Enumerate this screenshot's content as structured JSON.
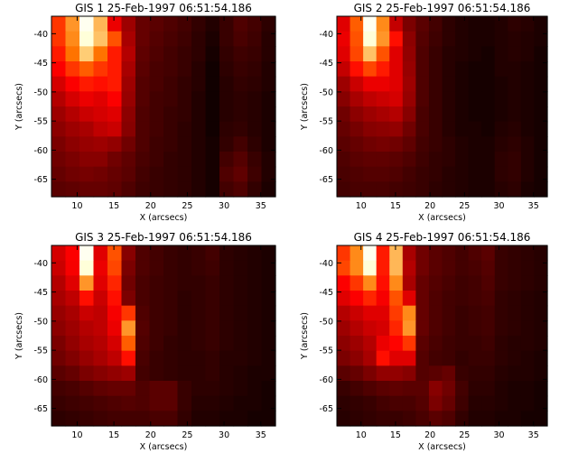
{
  "chart_data": [
    {
      "type": "heatmap",
      "title": "GIS 1 25-Feb-1997 06:51:54.186",
      "xlabel": "X (arcsecs)",
      "ylabel": "Y (arcsecs)",
      "xticks": [
        10,
        15,
        20,
        25,
        30,
        35
      ],
      "yticks": [
        -40,
        -45,
        -50,
        -55,
        -60,
        -65
      ],
      "ytick_labels": [
        "-40",
        "-45",
        "-50",
        "-55",
        "-60",
        "-65"
      ],
      "xlim": [
        6.5,
        37
      ],
      "ylim": [
        -68,
        -37
      ],
      "colormap": "red-temperature",
      "grid": false,
      "intensity_grid": [
        [
          0.55,
          0.72,
          0.98,
          0.78,
          0.42,
          0.28,
          0.18,
          0.16,
          0.14,
          0.12,
          0.09,
          0.06,
          0.1,
          0.14,
          0.12,
          0.08
        ],
        [
          0.55,
          0.7,
          0.95,
          0.8,
          0.6,
          0.3,
          0.18,
          0.15,
          0.13,
          0.11,
          0.08,
          0.05,
          0.1,
          0.13,
          0.11,
          0.07
        ],
        [
          0.5,
          0.66,
          0.82,
          0.66,
          0.5,
          0.32,
          0.17,
          0.14,
          0.12,
          0.1,
          0.08,
          0.04,
          0.09,
          0.11,
          0.1,
          0.07
        ],
        [
          0.45,
          0.55,
          0.62,
          0.55,
          0.5,
          0.3,
          0.16,
          0.13,
          0.12,
          0.1,
          0.07,
          0.03,
          0.08,
          0.1,
          0.09,
          0.06
        ],
        [
          0.38,
          0.45,
          0.5,
          0.48,
          0.5,
          0.28,
          0.15,
          0.13,
          0.11,
          0.09,
          0.07,
          0.03,
          0.07,
          0.09,
          0.08,
          0.06
        ],
        [
          0.32,
          0.38,
          0.42,
          0.4,
          0.45,
          0.27,
          0.15,
          0.12,
          0.11,
          0.09,
          0.06,
          0.03,
          0.07,
          0.08,
          0.07,
          0.05
        ],
        [
          0.28,
          0.32,
          0.36,
          0.38,
          0.4,
          0.25,
          0.14,
          0.12,
          0.1,
          0.09,
          0.06,
          0.03,
          0.07,
          0.08,
          0.07,
          0.05
        ],
        [
          0.25,
          0.28,
          0.3,
          0.34,
          0.36,
          0.24,
          0.14,
          0.12,
          0.1,
          0.08,
          0.06,
          0.03,
          0.08,
          0.09,
          0.07,
          0.05
        ],
        [
          0.22,
          0.25,
          0.27,
          0.28,
          0.26,
          0.2,
          0.14,
          0.11,
          0.1,
          0.08,
          0.06,
          0.04,
          0.09,
          0.12,
          0.08,
          0.05
        ],
        [
          0.2,
          0.22,
          0.24,
          0.24,
          0.2,
          0.17,
          0.13,
          0.11,
          0.09,
          0.08,
          0.06,
          0.04,
          0.12,
          0.15,
          0.1,
          0.06
        ],
        [
          0.18,
          0.2,
          0.21,
          0.2,
          0.18,
          0.16,
          0.12,
          0.1,
          0.09,
          0.08,
          0.06,
          0.04,
          0.14,
          0.17,
          0.11,
          0.06
        ],
        [
          0.16,
          0.17,
          0.18,
          0.18,
          0.17,
          0.14,
          0.11,
          0.1,
          0.09,
          0.08,
          0.06,
          0.04,
          0.12,
          0.14,
          0.09,
          0.05
        ]
      ]
    },
    {
      "type": "heatmap",
      "title": "GIS 2 25-Feb-1997 06:51:54.186",
      "xlabel": "X (arcsecs)",
      "ylabel": "Y (arcsecs)",
      "xticks": [
        10,
        15,
        20,
        25,
        30,
        35
      ],
      "yticks": [
        -40,
        -45,
        -50,
        -55,
        -60,
        -65
      ],
      "ytick_labels": [
        "-40",
        "-45",
        "-50",
        "-55",
        "-60",
        "-65"
      ],
      "xlim": [
        6.5,
        37
      ],
      "ylim": [
        -68,
        -37
      ],
      "colormap": "red-temperature",
      "grid": false,
      "intensity_grid": [
        [
          0.4,
          0.62,
          0.98,
          0.7,
          0.35,
          0.22,
          0.16,
          0.12,
          0.08,
          0.06,
          0.05,
          0.05,
          0.06,
          0.08,
          0.07,
          0.05
        ],
        [
          0.42,
          0.6,
          0.95,
          0.72,
          0.48,
          0.25,
          0.15,
          0.11,
          0.08,
          0.06,
          0.05,
          0.05,
          0.06,
          0.07,
          0.06,
          0.05
        ],
        [
          0.4,
          0.58,
          0.8,
          0.6,
          0.4,
          0.26,
          0.14,
          0.1,
          0.07,
          0.06,
          0.05,
          0.04,
          0.06,
          0.07,
          0.06,
          0.04
        ],
        [
          0.35,
          0.48,
          0.58,
          0.5,
          0.4,
          0.27,
          0.14,
          0.1,
          0.07,
          0.05,
          0.04,
          0.04,
          0.06,
          0.06,
          0.05,
          0.04
        ],
        [
          0.28,
          0.36,
          0.42,
          0.42,
          0.4,
          0.28,
          0.14,
          0.1,
          0.07,
          0.05,
          0.04,
          0.04,
          0.05,
          0.06,
          0.05,
          0.04
        ],
        [
          0.24,
          0.3,
          0.34,
          0.36,
          0.38,
          0.27,
          0.14,
          0.1,
          0.07,
          0.05,
          0.04,
          0.04,
          0.05,
          0.06,
          0.05,
          0.04
        ],
        [
          0.2,
          0.25,
          0.28,
          0.3,
          0.32,
          0.24,
          0.13,
          0.1,
          0.07,
          0.05,
          0.04,
          0.04,
          0.05,
          0.06,
          0.05,
          0.04
        ],
        [
          0.18,
          0.21,
          0.24,
          0.25,
          0.26,
          0.2,
          0.13,
          0.1,
          0.07,
          0.05,
          0.05,
          0.04,
          0.06,
          0.07,
          0.05,
          0.04
        ],
        [
          0.16,
          0.18,
          0.2,
          0.21,
          0.2,
          0.17,
          0.12,
          0.1,
          0.08,
          0.06,
          0.05,
          0.05,
          0.07,
          0.08,
          0.06,
          0.04
        ],
        [
          0.14,
          0.16,
          0.17,
          0.17,
          0.16,
          0.14,
          0.11,
          0.09,
          0.08,
          0.06,
          0.05,
          0.05,
          0.08,
          0.09,
          0.06,
          0.04
        ],
        [
          0.13,
          0.14,
          0.15,
          0.15,
          0.14,
          0.12,
          0.1,
          0.09,
          0.07,
          0.06,
          0.05,
          0.05,
          0.08,
          0.09,
          0.06,
          0.04
        ],
        [
          0.12,
          0.13,
          0.13,
          0.13,
          0.12,
          0.11,
          0.1,
          0.08,
          0.07,
          0.06,
          0.05,
          0.05,
          0.07,
          0.08,
          0.05,
          0.04
        ]
      ]
    },
    {
      "type": "heatmap",
      "title": "GIS 3 25-Feb-1997 06:51:54.186",
      "xlabel": "X (arcsecs)",
      "ylabel": "Y (arcsecs)",
      "xticks": [
        10,
        15,
        20,
        25,
        30,
        35
      ],
      "yticks": [
        -40,
        -45,
        -50,
        -55,
        -60,
        -65
      ],
      "ytick_labels": [
        "-40",
        "-45",
        "-50",
        "-55",
        "-60",
        "-65"
      ],
      "xlim": [
        6.5,
        37
      ],
      "ylim": [
        -68,
        -37
      ],
      "colormap": "red-temperature",
      "grid": false,
      "intensity_grid": [
        [
          0.38,
          0.45,
          0.98,
          0.4,
          0.6,
          0.24,
          0.14,
          0.12,
          0.1,
          0.09,
          0.1,
          0.12,
          0.08,
          0.07,
          0.06,
          0.05
        ],
        [
          0.36,
          0.44,
          0.95,
          0.42,
          0.58,
          0.22,
          0.14,
          0.12,
          0.1,
          0.09,
          0.1,
          0.11,
          0.08,
          0.07,
          0.06,
          0.05
        ],
        [
          0.32,
          0.4,
          0.72,
          0.4,
          0.52,
          0.2,
          0.13,
          0.11,
          0.1,
          0.09,
          0.09,
          0.1,
          0.08,
          0.07,
          0.06,
          0.05
        ],
        [
          0.3,
          0.34,
          0.48,
          0.36,
          0.48,
          0.22,
          0.13,
          0.11,
          0.1,
          0.08,
          0.09,
          0.1,
          0.08,
          0.07,
          0.06,
          0.05
        ],
        [
          0.27,
          0.3,
          0.36,
          0.34,
          0.44,
          0.55,
          0.14,
          0.11,
          0.1,
          0.08,
          0.09,
          0.1,
          0.08,
          0.07,
          0.06,
          0.05
        ],
        [
          0.25,
          0.28,
          0.32,
          0.34,
          0.42,
          0.72,
          0.15,
          0.11,
          0.1,
          0.08,
          0.09,
          0.1,
          0.08,
          0.07,
          0.06,
          0.05
        ],
        [
          0.22,
          0.26,
          0.3,
          0.32,
          0.38,
          0.62,
          0.14,
          0.11,
          0.09,
          0.08,
          0.09,
          0.1,
          0.08,
          0.07,
          0.06,
          0.05
        ],
        [
          0.2,
          0.23,
          0.27,
          0.3,
          0.34,
          0.48,
          0.13,
          0.1,
          0.09,
          0.08,
          0.08,
          0.09,
          0.07,
          0.07,
          0.06,
          0.05
        ],
        [
          0.16,
          0.18,
          0.22,
          0.24,
          0.26,
          0.28,
          0.12,
          0.1,
          0.09,
          0.08,
          0.08,
          0.09,
          0.07,
          0.06,
          0.05,
          0.05
        ],
        [
          0.12,
          0.13,
          0.15,
          0.17,
          0.18,
          0.18,
          0.14,
          0.16,
          0.16,
          0.1,
          0.08,
          0.08,
          0.07,
          0.06,
          0.05,
          0.04
        ],
        [
          0.1,
          0.11,
          0.12,
          0.13,
          0.14,
          0.15,
          0.14,
          0.16,
          0.16,
          0.1,
          0.07,
          0.07,
          0.06,
          0.05,
          0.05,
          0.04
        ],
        [
          0.08,
          0.09,
          0.1,
          0.11,
          0.12,
          0.12,
          0.12,
          0.13,
          0.13,
          0.09,
          0.06,
          0.06,
          0.05,
          0.05,
          0.04,
          0.04
        ]
      ]
    },
    {
      "type": "heatmap",
      "title": "GIS 4 25-Feb-1997 06:51:54.186",
      "xlabel": "X (arcsecs)",
      "ylabel": "Y (arcsecs)",
      "xticks": [
        10,
        15,
        20,
        25,
        30,
        35
      ],
      "yticks": [
        -40,
        -45,
        -50,
        -55,
        -60,
        -65
      ],
      "ytick_labels": [
        "-40",
        "-45",
        "-50",
        "-55",
        "-60",
        "-65"
      ],
      "xlim": [
        6.5,
        37
      ],
      "ylim": [
        -68,
        -37
      ],
      "colormap": "red-temperature",
      "grid": false,
      "intensity_grid": [
        [
          0.55,
          0.7,
          0.98,
          0.5,
          0.78,
          0.3,
          0.2,
          0.16,
          0.14,
          0.12,
          0.14,
          0.16,
          0.1,
          0.09,
          0.08,
          0.07
        ],
        [
          0.58,
          0.7,
          0.95,
          0.5,
          0.78,
          0.32,
          0.2,
          0.16,
          0.14,
          0.12,
          0.13,
          0.15,
          0.1,
          0.09,
          0.08,
          0.07
        ],
        [
          0.45,
          0.55,
          0.7,
          0.48,
          0.7,
          0.3,
          0.18,
          0.15,
          0.13,
          0.11,
          0.12,
          0.14,
          0.1,
          0.09,
          0.08,
          0.07
        ],
        [
          0.4,
          0.45,
          0.52,
          0.44,
          0.6,
          0.4,
          0.18,
          0.14,
          0.12,
          0.11,
          0.12,
          0.13,
          0.09,
          0.08,
          0.07,
          0.06
        ],
        [
          0.32,
          0.36,
          0.4,
          0.4,
          0.56,
          0.7,
          0.18,
          0.14,
          0.12,
          0.1,
          0.11,
          0.12,
          0.09,
          0.08,
          0.07,
          0.06
        ],
        [
          0.28,
          0.32,
          0.36,
          0.38,
          0.52,
          0.72,
          0.18,
          0.14,
          0.12,
          0.1,
          0.11,
          0.12,
          0.09,
          0.08,
          0.07,
          0.06
        ],
        [
          0.25,
          0.28,
          0.32,
          0.42,
          0.46,
          0.55,
          0.16,
          0.13,
          0.11,
          0.1,
          0.1,
          0.11,
          0.08,
          0.07,
          0.07,
          0.06
        ],
        [
          0.22,
          0.25,
          0.3,
          0.48,
          0.4,
          0.4,
          0.15,
          0.12,
          0.11,
          0.09,
          0.1,
          0.1,
          0.08,
          0.07,
          0.06,
          0.05
        ],
        [
          0.16,
          0.18,
          0.22,
          0.26,
          0.26,
          0.24,
          0.15,
          0.16,
          0.18,
          0.1,
          0.09,
          0.09,
          0.07,
          0.06,
          0.06,
          0.05
        ],
        [
          0.1,
          0.12,
          0.14,
          0.16,
          0.17,
          0.16,
          0.16,
          0.24,
          0.2,
          0.12,
          0.08,
          0.08,
          0.06,
          0.05,
          0.05,
          0.04
        ],
        [
          0.08,
          0.09,
          0.1,
          0.12,
          0.13,
          0.13,
          0.15,
          0.22,
          0.18,
          0.11,
          0.07,
          0.07,
          0.06,
          0.05,
          0.05,
          0.04
        ],
        [
          0.07,
          0.08,
          0.09,
          0.1,
          0.1,
          0.11,
          0.13,
          0.16,
          0.14,
          0.09,
          0.06,
          0.06,
          0.05,
          0.05,
          0.04,
          0.04
        ]
      ]
    }
  ]
}
